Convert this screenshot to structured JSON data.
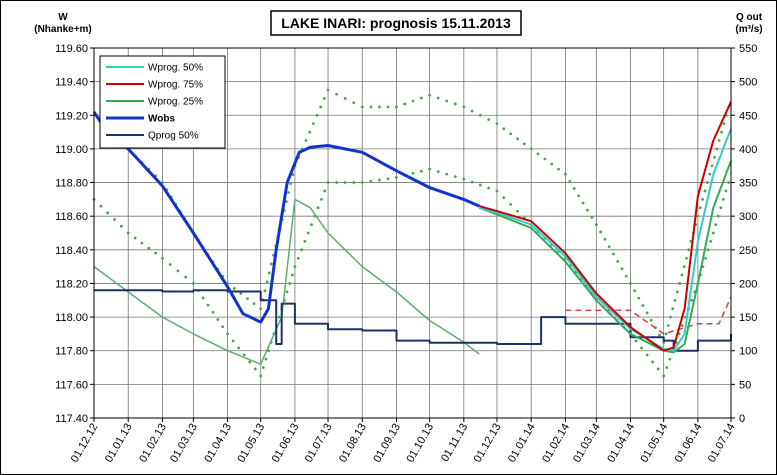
{
  "chart_data": {
    "type": "line",
    "title": "LAKE INARI: prognosis 15.11.2013",
    "left_axis": {
      "label_line1": "W",
      "label_line2": "(Nhanke+m)",
      "min": 117.4,
      "max": 119.6,
      "step": 0.2,
      "ticks": [
        "117.40",
        "117.60",
        "117.80",
        "118.00",
        "118.20",
        "118.40",
        "118.60",
        "118.80",
        "119.00",
        "119.20",
        "119.40",
        "119.60"
      ]
    },
    "right_axis": {
      "label_line1": "Q out",
      "label_line2": "(m³/s)",
      "min": 0,
      "max": 550,
      "step": 50,
      "ticks": [
        "0",
        "50",
        "100",
        "150",
        "200",
        "250",
        "300",
        "350",
        "400",
        "450",
        "500",
        "550"
      ]
    },
    "x_axis": {
      "start": "01.12.12",
      "end": "01.07.14",
      "ticks": [
        "01.12.12",
        "01.01.13",
        "01.02.13",
        "01.03.13",
        "01.04.13",
        "01.05.13",
        "01.06.13",
        "01.07.13",
        "01.08.13",
        "01.09.13",
        "01.10.13",
        "01.11.13",
        "01.12.13",
        "01.01.14",
        "01.02.14",
        "01.03.14",
        "01.04.14",
        "01.05.14",
        "01.06.14",
        "01.07.14"
      ]
    },
    "grid": true,
    "legend_position": "top-left",
    "series": [
      {
        "name": "Wprog. 50%",
        "color": "#33cccc",
        "width": 2,
        "axis": "left",
        "points": [
          [
            "15.11.13",
            118.65
          ],
          [
            "01.12.13",
            118.62
          ],
          [
            "01.01.14",
            118.55
          ],
          [
            "01.02.14",
            118.36
          ],
          [
            "01.03.14",
            118.12
          ],
          [
            "01.04.14",
            117.93
          ],
          [
            "01.05.14",
            117.81
          ],
          [
            "10.05.14",
            117.8
          ],
          [
            "20.05.14",
            117.9
          ],
          [
            "01.06.14",
            118.45
          ],
          [
            "15.06.14",
            118.85
          ],
          [
            "01.07.14",
            119.12
          ]
        ]
      },
      {
        "name": "Wprog. 75%",
        "color": "#cc0000",
        "width": 2,
        "axis": "left",
        "points": [
          [
            "15.11.13",
            118.66
          ],
          [
            "01.12.13",
            118.63
          ],
          [
            "01.01.14",
            118.57
          ],
          [
            "01.02.14",
            118.38
          ],
          [
            "01.03.14",
            118.14
          ],
          [
            "01.04.14",
            117.94
          ],
          [
            "01.05.14",
            117.8
          ],
          [
            "10.05.14",
            117.82
          ],
          [
            "20.05.14",
            118.05
          ],
          [
            "01.06.14",
            118.72
          ],
          [
            "15.06.14",
            119.05
          ],
          [
            "01.07.14",
            119.28
          ]
        ]
      },
      {
        "name": "Wprog. 25%",
        "color": "#33aa55",
        "width": 2,
        "axis": "left",
        "points": [
          [
            "15.11.13",
            118.65
          ],
          [
            "01.12.13",
            118.61
          ],
          [
            "01.01.14",
            118.53
          ],
          [
            "01.02.14",
            118.33
          ],
          [
            "01.03.14",
            118.1
          ],
          [
            "01.04.14",
            117.9
          ],
          [
            "01.05.14",
            117.8
          ],
          [
            "10.05.14",
            117.79
          ],
          [
            "20.05.14",
            117.84
          ],
          [
            "01.06.14",
            118.2
          ],
          [
            "15.06.14",
            118.65
          ],
          [
            "01.07.14",
            118.93
          ]
        ]
      },
      {
        "name": "Wobs",
        "color": "#1133cc",
        "width": 3,
        "axis": "left",
        "points": [
          [
            "01.12.12",
            119.22
          ],
          [
            "15.12.12",
            119.08
          ],
          [
            "01.01.13",
            119.0
          ],
          [
            "01.02.13",
            118.78
          ],
          [
            "01.03.13",
            118.5
          ],
          [
            "01.04.13",
            118.18
          ],
          [
            "15.04.13",
            118.02
          ],
          [
            "01.05.13",
            117.97
          ],
          [
            "08.05.13",
            118.05
          ],
          [
            "15.05.13",
            118.4
          ],
          [
            "25.05.13",
            118.8
          ],
          [
            "05.06.13",
            118.98
          ],
          [
            "15.06.13",
            119.01
          ],
          [
            "01.07.13",
            119.02
          ],
          [
            "01.08.13",
            118.98
          ],
          [
            "01.09.13",
            118.87
          ],
          [
            "01.10.13",
            118.77
          ],
          [
            "01.11.13",
            118.7
          ],
          [
            "15.11.13",
            118.66
          ]
        ]
      },
      {
        "name": "Qprog 50%",
        "color": "#1a3366",
        "width": 2,
        "axis": "right",
        "step": true,
        "points": [
          [
            "01.12.12",
            190
          ],
          [
            "01.01.13",
            190
          ],
          [
            "01.02.13",
            188
          ],
          [
            "01.03.13",
            190
          ],
          [
            "01.04.13",
            188
          ],
          [
            "01.05.13",
            175
          ],
          [
            "15.05.13",
            110
          ],
          [
            "20.05.13",
            170
          ],
          [
            "01.06.13",
            140
          ],
          [
            "01.07.13",
            132
          ],
          [
            "01.08.13",
            130
          ],
          [
            "01.09.13",
            115
          ],
          [
            "01.10.13",
            112
          ],
          [
            "01.11.13",
            112
          ],
          [
            "01.12.13",
            110
          ],
          [
            "01.01.14",
            110
          ],
          [
            "10.01.14",
            150
          ],
          [
            "01.02.14",
            140
          ],
          [
            "01.03.14",
            140
          ],
          [
            "01.04.14",
            120
          ],
          [
            "01.05.14",
            115
          ],
          [
            "10.05.14",
            100
          ],
          [
            "01.06.14",
            115
          ],
          [
            "01.07.14",
            125
          ]
        ]
      },
      {
        "name": "W upper envelope",
        "color": "#44aa44",
        "axis": "left",
        "dotted": true,
        "legend": false,
        "points": [
          [
            "01.01.13",
            119.0
          ],
          [
            "01.02.13",
            118.8
          ],
          [
            "01.03.13",
            118.5
          ],
          [
            "01.04.13",
            118.2
          ],
          [
            "01.05.13",
            118.05
          ],
          [
            "01.06.13",
            118.9
          ],
          [
            "01.07.13",
            119.35
          ],
          [
            "01.08.13",
            119.25
          ],
          [
            "01.09.13",
            119.25
          ],
          [
            "01.10.13",
            119.32
          ],
          [
            "01.11.13",
            119.25
          ],
          [
            "01.12.13",
            119.15
          ],
          [
            "01.01.14",
            119.0
          ],
          [
            "01.02.14",
            118.85
          ],
          [
            "01.03.14",
            118.55
          ],
          [
            "01.04.14",
            118.2
          ],
          [
            "01.05.14",
            117.85
          ],
          [
            "01.06.14",
            118.6
          ],
          [
            "01.07.14",
            119.3
          ]
        ]
      },
      {
        "name": "W lower envelope",
        "color": "#44aa44",
        "axis": "left",
        "dotted": true,
        "legend": false,
        "points": [
          [
            "01.12.12",
            118.7
          ],
          [
            "01.01.13",
            118.5
          ],
          [
            "01.02.13",
            118.35
          ],
          [
            "01.03.13",
            118.2
          ],
          [
            "01.04.13",
            117.9
          ],
          [
            "01.05.13",
            117.65
          ],
          [
            "01.06.13",
            118.3
          ],
          [
            "01.07.13",
            118.8
          ],
          [
            "01.08.13",
            118.8
          ],
          [
            "01.09.13",
            118.83
          ],
          [
            "01.10.13",
            118.88
          ],
          [
            "01.11.13",
            118.82
          ],
          [
            "01.12.13",
            118.75
          ],
          [
            "01.01.14",
            118.55
          ],
          [
            "01.02.14",
            118.35
          ],
          [
            "01.03.14",
            118.1
          ],
          [
            "01.04.14",
            117.9
          ],
          [
            "01.05.14",
            117.65
          ],
          [
            "01.06.14",
            118.2
          ],
          [
            "01.07.14",
            118.85
          ]
        ]
      },
      {
        "name": "W low path",
        "color": "#5cae6e",
        "width": 1.5,
        "axis": "left",
        "points": [
          [
            "01.12.12",
            118.3
          ],
          [
            "01.01.13",
            118.15
          ],
          [
            "01.02.13",
            118.0
          ],
          [
            "01.03.13",
            117.9
          ],
          [
            "01.04.13",
            117.8
          ],
          [
            "01.05.13",
            117.72
          ],
          [
            "20.05.13",
            118.0
          ],
          [
            "01.06.13",
            118.7
          ],
          [
            "15.06.13",
            118.65
          ],
          [
            "01.07.13",
            118.5
          ],
          [
            "01.08.13",
            118.3
          ],
          [
            "01.09.13",
            118.15
          ],
          [
            "01.10.13",
            117.98
          ],
          [
            "01.11.13",
            117.85
          ],
          [
            "15.11.13",
            117.78
          ]
        ]
      },
      {
        "name": "Q envelope dashed",
        "color": "#cc4444",
        "axis": "right",
        "dashed": true,
        "legend": false,
        "points": [
          [
            "01.02.14",
            160
          ],
          [
            "01.03.14",
            160
          ],
          [
            "01.04.14",
            160
          ],
          [
            "01.05.14",
            125
          ],
          [
            "01.06.14",
            140
          ],
          [
            "20.06.14",
            140
          ],
          [
            "01.07.14",
            180
          ]
        ]
      }
    ]
  }
}
